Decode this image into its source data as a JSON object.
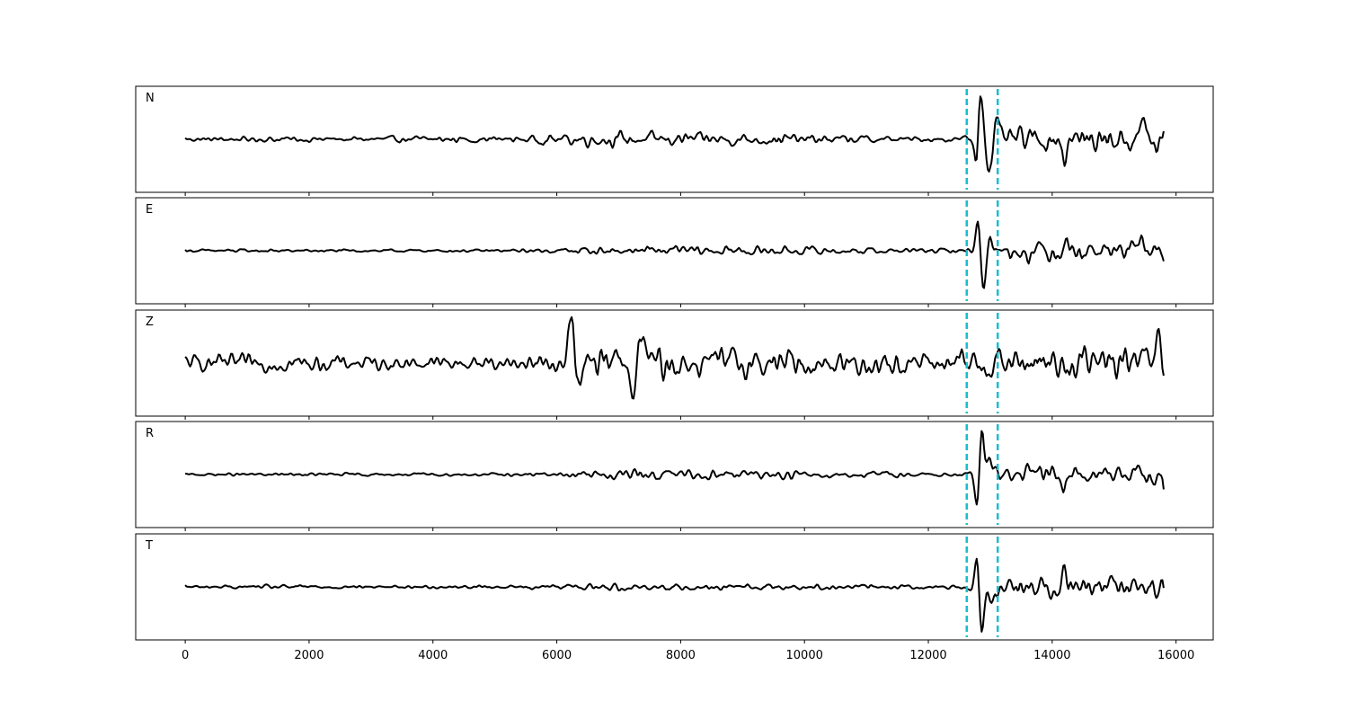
{
  "chart_data": {
    "type": "line",
    "xlim": [
      -800,
      16600
    ],
    "x_ticks": [
      0,
      2000,
      4000,
      6000,
      8000,
      10000,
      12000,
      14000,
      16000
    ],
    "x_tick_labels": [
      "0",
      "2000",
      "4000",
      "6000",
      "8000",
      "10000",
      "12000",
      "14000",
      "16000"
    ],
    "x_range": [
      0,
      15800
    ],
    "sample_step": 20,
    "ylim": [
      -1,
      1
    ],
    "grid": false,
    "pick_lines": {
      "x": [
        12620,
        13120
      ],
      "color": "#17becf",
      "style": "dashed"
    },
    "line_color": "#000000",
    "panels": [
      {
        "label": "N",
        "envelope": [
          [
            0,
            0.05
          ],
          [
            600,
            0.06
          ],
          [
            1500,
            0.08
          ],
          [
            3000,
            0.07
          ],
          [
            4500,
            0.09
          ],
          [
            5500,
            0.1
          ],
          [
            6200,
            0.16
          ],
          [
            7000,
            0.2
          ],
          [
            8000,
            0.17
          ],
          [
            9000,
            0.16
          ],
          [
            10000,
            0.13
          ],
          [
            11000,
            0.1
          ],
          [
            12000,
            0.07
          ],
          [
            12500,
            0.08
          ],
          [
            13000,
            0.3
          ],
          [
            13600,
            0.32
          ],
          [
            14200,
            0.3
          ],
          [
            15000,
            0.3
          ],
          [
            15800,
            0.38
          ]
        ],
        "spikes": [
          [
            12840,
            1.05,
            55
          ],
          [
            12780,
            -0.65,
            45
          ],
          [
            12990,
            -0.55,
            60
          ],
          [
            13100,
            0.3,
            50
          ],
          [
            14200,
            -0.45,
            40
          ],
          [
            15480,
            0.45,
            50
          ],
          [
            15690,
            -0.35,
            50
          ]
        ]
      },
      {
        "label": "E",
        "envelope": [
          [
            0,
            0.03
          ],
          [
            1000,
            0.04
          ],
          [
            3000,
            0.03
          ],
          [
            5000,
            0.03
          ],
          [
            6000,
            0.05
          ],
          [
            6500,
            0.1
          ],
          [
            7500,
            0.12
          ],
          [
            8500,
            0.12
          ],
          [
            9500,
            0.1
          ],
          [
            10500,
            0.09
          ],
          [
            11500,
            0.06
          ],
          [
            12500,
            0.05
          ],
          [
            12900,
            0.1
          ],
          [
            13300,
            0.25
          ],
          [
            14000,
            0.27
          ],
          [
            14800,
            0.2
          ],
          [
            15800,
            0.22
          ]
        ],
        "spikes": [
          [
            12810,
            0.72,
            55
          ],
          [
            12880,
            -0.9,
            55
          ],
          [
            13000,
            0.3,
            55
          ],
          [
            14210,
            0.3,
            50
          ],
          [
            15440,
            0.22,
            50
          ]
        ]
      },
      {
        "label": "Z",
        "envelope": [
          [
            0,
            0.18
          ],
          [
            1500,
            0.22
          ],
          [
            3000,
            0.17
          ],
          [
            5000,
            0.18
          ],
          [
            6000,
            0.24
          ],
          [
            6500,
            0.45
          ],
          [
            7500,
            0.42
          ],
          [
            8500,
            0.38
          ],
          [
            9500,
            0.33
          ],
          [
            10500,
            0.33
          ],
          [
            11500,
            0.32
          ],
          [
            12500,
            0.3
          ],
          [
            13000,
            0.4
          ],
          [
            14000,
            0.42
          ],
          [
            15000,
            0.4
          ],
          [
            15800,
            0.42
          ]
        ],
        "spikes": [
          [
            6230,
            0.85,
            60
          ],
          [
            6380,
            -0.55,
            60
          ],
          [
            7210,
            -0.85,
            65
          ],
          [
            7380,
            0.6,
            60
          ],
          [
            7000,
            0.4,
            60
          ],
          [
            15720,
            0.55,
            50
          ],
          [
            15790,
            -0.4,
            40
          ]
        ]
      },
      {
        "label": "R",
        "envelope": [
          [
            0,
            0.03
          ],
          [
            1500,
            0.05
          ],
          [
            3000,
            0.04
          ],
          [
            5000,
            0.04
          ],
          [
            6200,
            0.08
          ],
          [
            7000,
            0.16
          ],
          [
            8000,
            0.14
          ],
          [
            9000,
            0.13
          ],
          [
            10000,
            0.12
          ],
          [
            11000,
            0.1
          ],
          [
            12000,
            0.06
          ],
          [
            12600,
            0.06
          ],
          [
            13200,
            0.3
          ],
          [
            14000,
            0.3
          ],
          [
            15000,
            0.22
          ],
          [
            15800,
            0.3
          ]
        ],
        "spikes": [
          [
            12860,
            0.95,
            55
          ],
          [
            12790,
            -0.8,
            50
          ],
          [
            13000,
            0.25,
            60
          ],
          [
            14180,
            -0.3,
            50
          ],
          [
            15650,
            -0.28,
            45
          ]
        ]
      },
      {
        "label": "T",
        "envelope": [
          [
            0,
            0.04
          ],
          [
            1500,
            0.05
          ],
          [
            3000,
            0.04
          ],
          [
            5000,
            0.04
          ],
          [
            6300,
            0.07
          ],
          [
            7000,
            0.1
          ],
          [
            8000,
            0.09
          ],
          [
            9000,
            0.08
          ],
          [
            10000,
            0.07
          ],
          [
            11000,
            0.06
          ],
          [
            12000,
            0.05
          ],
          [
            12600,
            0.06
          ],
          [
            13200,
            0.28
          ],
          [
            14000,
            0.3
          ],
          [
            15000,
            0.26
          ],
          [
            15800,
            0.3
          ]
        ],
        "spikes": [
          [
            12790,
            0.78,
            50
          ],
          [
            12860,
            -1.05,
            55
          ],
          [
            13000,
            -0.25,
            50
          ],
          [
            14200,
            0.42,
            50
          ],
          [
            15680,
            -0.28,
            50
          ]
        ]
      }
    ]
  }
}
